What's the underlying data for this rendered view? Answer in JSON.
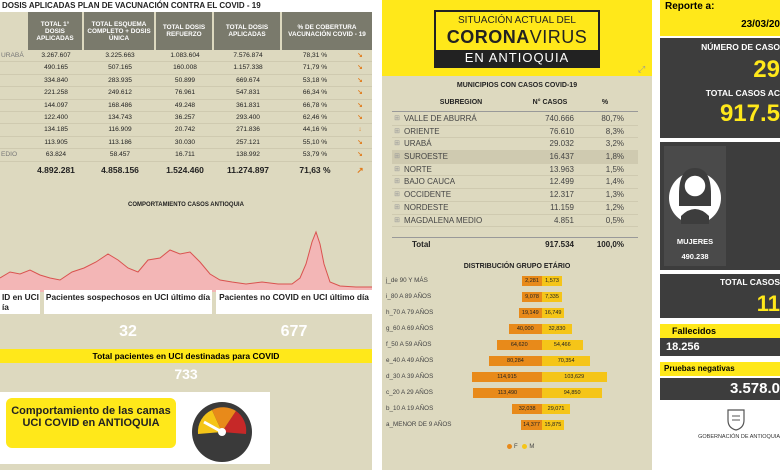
{
  "vaccination": {
    "title": "DOSIS APLICADAS PLAN DE VACUNACIÓN CONTRA EL COVID - 19",
    "headers": [
      "TOTAL 1° DOSIS APLICADAS",
      "TOTAL ESQUEMA COMPLETO + DOSIS ÚNICA",
      "TOTAL DOSIS REFUERZO",
      "TOTAL DOSIS APLICADAS",
      "% DE COBERTURA VACUNACIÓN COVID - 19"
    ],
    "rows": [
      {
        "name": "URABÁ",
        "d1": "3.267.607",
        "comp": "3.225.663",
        "ref": "1.083.604",
        "tot": "7.576.874",
        "pct": "78,31 %",
        "arrow": "↘"
      },
      {
        "name": "",
        "d1": "490.165",
        "comp": "507.165",
        "ref": "160.008",
        "tot": "1.157.338",
        "pct": "71,79 %",
        "arrow": "↘"
      },
      {
        "name": "",
        "d1": "334.840",
        "comp": "283.935",
        "ref": "50.899",
        "tot": "669.674",
        "pct": "53,18 %",
        "arrow": "↘"
      },
      {
        "name": "",
        "d1": "221.258",
        "comp": "249.612",
        "ref": "76.961",
        "tot": "547.831",
        "pct": "66,34 %",
        "arrow": "↘"
      },
      {
        "name": "",
        "d1": "144.097",
        "comp": "168.486",
        "ref": "49.248",
        "tot": "361.831",
        "pct": "66,78 %",
        "arrow": "↘"
      },
      {
        "name": "",
        "d1": "122.400",
        "comp": "134.743",
        "ref": "36.257",
        "tot": "293.400",
        "pct": "62,46 %",
        "arrow": "↘"
      },
      {
        "name": "",
        "d1": "134.185",
        "comp": "116.909",
        "ref": "20.742",
        "tot": "271.836",
        "pct": "44,16 %",
        "arrow": "↓"
      },
      {
        "name": "",
        "d1": "113.905",
        "comp": "113.186",
        "ref": "30.030",
        "tot": "257.121",
        "pct": "55,10 %",
        "arrow": "↘"
      },
      {
        "name": "EDIO",
        "d1": "63.824",
        "comp": "58.457",
        "ref": "16.711",
        "tot": "138.992",
        "pct": "53,79 %",
        "arrow": "↘"
      }
    ],
    "totals": {
      "d1": "4.892.281",
      "comp": "4.858.156",
      "ref": "1.524.460",
      "tot": "11.274.897",
      "pct": "71,63 %",
      "arrow": "↗"
    }
  },
  "cases_chart": {
    "title": "COMPORTAMIENTO CASOS ANTIOQUIA",
    "fill_color": "#f3b6b6",
    "line_color": "#d9534f"
  },
  "uci": {
    "box1_label": "ID en UCI ía",
    "box2_label": "Pacientes sospechosos en UCI último día",
    "box2_value": "32",
    "box3_label": "Pacientes no COVID en UCI último día",
    "box3_value": "677",
    "total_label": "Total pacientes en UCI destinadas para COVID",
    "total_value": "733",
    "camas_label": "Comportamiento de las camas UCI COVID en ANTIOQUIA"
  },
  "banner": {
    "line1": "SITUACIÓN ACTUAL DEL",
    "line2_bold": "CORONA",
    "line2_light": "VIRUS",
    "line3": "EN ANTIOQUIA"
  },
  "municipios": {
    "title": "MUNICIPIOS CON CASOS COVID-19",
    "col_subregion": "SUBREGION",
    "col_cases": "N° CASOS",
    "col_pct": "%",
    "rows": [
      {
        "name": "VALLE DE ABURRÁ",
        "cases": "740.666",
        "pct": "80,7%"
      },
      {
        "name": "ORIENTE",
        "cases": "76.610",
        "pct": "8,3%"
      },
      {
        "name": "URABÁ",
        "cases": "29.032",
        "pct": "3,2%"
      },
      {
        "name": "SUROESTE",
        "cases": "16.437",
        "pct": "1,8%"
      },
      {
        "name": "NORTE",
        "cases": "13.963",
        "pct": "1,5%"
      },
      {
        "name": "BAJO CAUCA",
        "cases": "12.499",
        "pct": "1,4%"
      },
      {
        "name": "OCCIDENTE",
        "cases": "12.317",
        "pct": "1,3%"
      },
      {
        "name": "NORDESTE",
        "cases": "11.159",
        "pct": "1,2%"
      },
      {
        "name": "MAGDALENA MEDIO",
        "cases": "4.851",
        "pct": "0,5%"
      }
    ],
    "total_label": "Total",
    "total_cases": "917.534",
    "total_pct": "100,0%"
  },
  "age_distribution": {
    "title": "DISTRIBUCIÓN GRUPO ETÁRIO",
    "legend_f": "F",
    "legend_m": "M",
    "color_f": "#e88a1a",
    "color_m": "#f5c518",
    "groups": [
      {
        "label": "j_de 90 Y MÁS",
        "f": 2281,
        "m": 1573,
        "f_label": "2,281",
        "m_label": "1,573"
      },
      {
        "label": "i_80 A 89 AÑOS",
        "f": 9078,
        "m": 7335,
        "f_label": "9,078",
        "m_label": "7,335"
      },
      {
        "label": "h_70 A 79 AÑOS",
        "f": 19149,
        "m": 16749,
        "f_label": "19,149",
        "m_label": "16,749"
      },
      {
        "label": "g_60 A 69 AÑOS",
        "f": 40000,
        "m": 32830,
        "f_label": "40,000",
        "m_label": "32,830"
      },
      {
        "label": "f_50 A 59 AÑOS",
        "f": 64620,
        "m": 54466,
        "f_label": "64,620",
        "m_label": "54,466"
      },
      {
        "label": "e_40 A 49 AÑOS",
        "f": 80284,
        "m": 70354,
        "f_label": "80,284",
        "m_label": "70,354"
      },
      {
        "label": "d_30 A 39 AÑOS",
        "f": 114915,
        "m": 103629,
        "f_label": "114,915",
        "m_label": "103,629"
      },
      {
        "label": "c_20 A 29 AÑOS",
        "f": 113490,
        "m": 94850,
        "f_label": "113,490",
        "m_label": "94,850"
      },
      {
        "label": "b_10 A 19 AÑOS",
        "f": 32038,
        "m": 29071,
        "f_label": "32,038",
        "m_label": "29,071"
      },
      {
        "label": "a_MENOR DE 9 AÑOS",
        "f": 14377,
        "m": 15875,
        "f_label": "14,377",
        "m_label": "15,875"
      }
    ]
  },
  "report": {
    "reporte_label": "Reporte a:",
    "fecha": "23/03/20",
    "num_casos_label": "NÚMERO DE CASO",
    "num_casos_value": "29",
    "total_casos_label": "TOTAL CASOS AC",
    "total_casos_value": "917.5",
    "mujeres_label": "MUJERES",
    "mujeres_value": "490.238",
    "total_casos2_label": "TOTAL CASOS",
    "total_casos2_value": "11",
    "fallecidos_label": "Fallecidos",
    "fallecidos_value": "18.256",
    "negativas_label": "Pruebas negativas",
    "negativas_value": "3.578.0",
    "gobernacion": "GOBERNACIÓN DE ANTIOQUIA"
  }
}
